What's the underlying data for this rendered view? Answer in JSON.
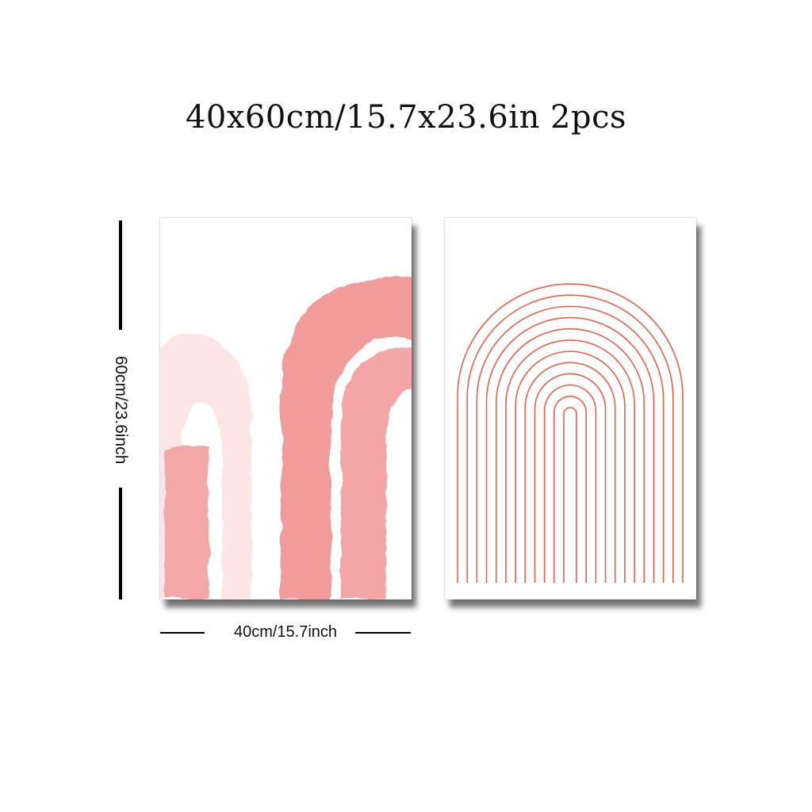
{
  "title": "40x60cm/15.7x23.6in 2pcs",
  "dimensions": {
    "height_label": "60cm/23.6inch",
    "width_label": "40cm/15.7inch"
  },
  "colors": {
    "background": "#ffffff",
    "text": "#111111",
    "pink": "#f08c8c",
    "pink_light": "#f8c9c9",
    "line_red": "#e8604c"
  },
  "posters": [
    {
      "name": "watercolor-arches-poster"
    },
    {
      "name": "rainbow-line-arch-poster"
    }
  ]
}
